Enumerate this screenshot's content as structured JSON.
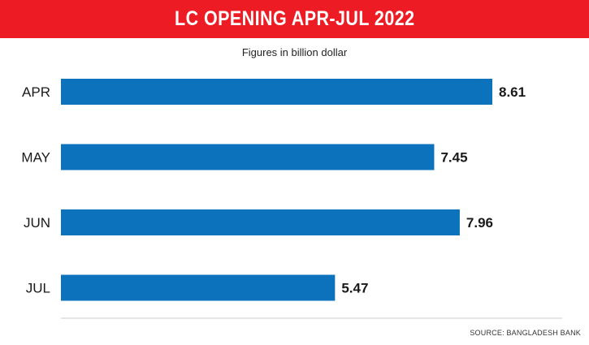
{
  "header": {
    "title": "LC OPENING APR-JUL 2022"
  },
  "colors": {
    "header_bg": "#ed1c24",
    "bar": "#0c72bb",
    "axis_line": "#cccccc"
  },
  "chart_data": {
    "type": "bar",
    "orientation": "horizontal",
    "title": "LC OPENING APR-JUL 2022",
    "subtitle": "Figures in billion dollar",
    "categories": [
      "APR",
      "MAY",
      "JUN",
      "JUL"
    ],
    "values": [
      8.61,
      7.45,
      7.96,
      5.47
    ],
    "value_labels": [
      "8.61",
      "7.45",
      "7.96",
      "5.47"
    ],
    "xlim": [
      0,
      8.61
    ],
    "grid": false,
    "legend": "none"
  },
  "footer": {
    "source": "SOURCE: BANGLADESH BANK"
  }
}
